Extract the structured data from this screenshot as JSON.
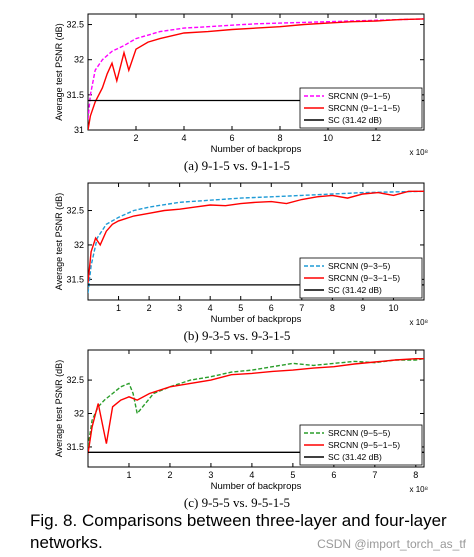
{
  "colors": {
    "three_layer_a": "#ff00ff",
    "three_layer_bc": "#1f9bd6",
    "three_layer_c": "#2a9d2a",
    "four_layer": "#ff0000",
    "sc": "#000000"
  },
  "chart_data": [
    {
      "type": "line",
      "id": "a",
      "caption": "(a) 9-1-5 vs. 9-1-1-5",
      "xlabel": "Number of backprops",
      "ylabel": "Average test PSNR (dB)",
      "x_multiplier": "x 10⁸",
      "xlim": [
        0,
        14
      ],
      "ylim": [
        31.0,
        32.65
      ],
      "xticks": [
        2,
        4,
        6,
        8,
        10,
        12
      ],
      "yticks": [
        31,
        31.5,
        32,
        32.5
      ],
      "legend_position": "bottom-right",
      "series": [
        {
          "name": "SRCNN (9−1−5)",
          "style": "dashed",
          "color_key": "three_layer_a",
          "x": [
            0,
            0.1,
            0.3,
            0.6,
            1,
            1.5,
            2,
            3,
            4,
            5,
            6,
            7,
            8,
            9,
            10,
            11,
            12,
            13,
            14
          ],
          "y": [
            31.15,
            31.5,
            31.85,
            32.0,
            32.12,
            32.2,
            32.3,
            32.4,
            32.45,
            32.47,
            32.49,
            32.51,
            32.52,
            32.53,
            32.54,
            32.55,
            32.56,
            32.57,
            32.58
          ]
        },
        {
          "name": "SRCNN (9−1−1−5)",
          "style": "solid",
          "color_key": "four_layer",
          "x": [
            0,
            0.1,
            0.3,
            0.6,
            0.8,
            1.0,
            1.2,
            1.5,
            1.7,
            2,
            2.5,
            3,
            4,
            5,
            6,
            7,
            8,
            9,
            10,
            11,
            12,
            13,
            14
          ],
          "y": [
            31.0,
            31.2,
            31.4,
            31.6,
            31.8,
            31.95,
            31.7,
            32.1,
            31.85,
            32.15,
            32.25,
            32.3,
            32.38,
            32.4,
            32.43,
            32.45,
            32.47,
            32.5,
            32.52,
            32.54,
            32.55,
            32.57,
            32.58
          ]
        },
        {
          "name": "SC (31.42 dB)",
          "style": "solid",
          "color_key": "sc",
          "x": [
            0,
            14
          ],
          "y": [
            31.42,
            31.42
          ]
        }
      ]
    },
    {
      "type": "line",
      "id": "b",
      "caption": "(b) 9-3-5 vs. 9-3-1-5",
      "xlabel": "Number of backprops",
      "ylabel": "Average test PSNR (dB)",
      "x_multiplier": "x 10⁸",
      "xlim": [
        0,
        11
      ],
      "ylim": [
        31.2,
        32.9
      ],
      "xticks": [
        1,
        2,
        3,
        4,
        5,
        6,
        7,
        8,
        9,
        10
      ],
      "yticks": [
        31.5,
        32,
        32.5
      ],
      "legend_position": "bottom-right",
      "series": [
        {
          "name": "SRCNN (9−3−5)",
          "style": "dashed",
          "color_key": "three_layer_bc",
          "x": [
            0,
            0.1,
            0.3,
            0.6,
            1,
            1.5,
            2,
            3,
            4,
            5,
            6,
            7,
            8,
            9,
            10,
            11
          ],
          "y": [
            31.3,
            31.7,
            32.1,
            32.3,
            32.4,
            32.5,
            32.55,
            32.62,
            32.65,
            32.68,
            32.7,
            32.72,
            32.74,
            32.76,
            32.77,
            32.78
          ]
        },
        {
          "name": "SRCNN (9−3−1−5)",
          "style": "solid",
          "color_key": "four_layer",
          "x": [
            0,
            0.1,
            0.25,
            0.4,
            0.6,
            0.8,
            1,
            1.5,
            2,
            2.5,
            3,
            3.5,
            4,
            4.5,
            5,
            5.5,
            6,
            6.5,
            7,
            7.5,
            8,
            8.5,
            9,
            9.5,
            10,
            10.5,
            11
          ],
          "y": [
            31.45,
            31.9,
            32.1,
            32.0,
            32.2,
            32.3,
            32.35,
            32.42,
            32.46,
            32.5,
            32.52,
            32.55,
            32.58,
            32.57,
            32.6,
            32.62,
            32.63,
            32.6,
            32.66,
            32.7,
            32.72,
            32.68,
            32.74,
            32.76,
            32.72,
            32.78,
            32.78
          ]
        },
        {
          "name": "SC (31.42 dB)",
          "style": "solid",
          "color_key": "sc",
          "x": [
            0,
            11
          ],
          "y": [
            31.42,
            31.42
          ]
        }
      ]
    },
    {
      "type": "line",
      "id": "c",
      "caption": "(c) 9-5-5 vs. 9-5-1-5",
      "xlabel": "Number of backprops",
      "ylabel": "Average test PSNR (dB)",
      "x_multiplier": "x 10⁸",
      "xlim": [
        0,
        8.2
      ],
      "ylim": [
        31.2,
        32.95
      ],
      "xticks": [
        1,
        2,
        3,
        4,
        5,
        6,
        7,
        8
      ],
      "yticks": [
        31.5,
        32,
        32.5
      ],
      "legend_position": "bottom-right",
      "series": [
        {
          "name": "SRCNN (9−5−5)",
          "style": "dashed",
          "color_key": "three_layer_c",
          "x": [
            0,
            0.1,
            0.25,
            0.4,
            0.6,
            0.8,
            1.0,
            1.1,
            1.2,
            1.4,
            1.6,
            2,
            2.5,
            3,
            3.5,
            4,
            4.5,
            5,
            5.5,
            6,
            6.5,
            7,
            7.5,
            8,
            8.2
          ],
          "y": [
            31.5,
            31.9,
            32.1,
            32.2,
            32.3,
            32.4,
            32.45,
            32.3,
            32.0,
            32.15,
            32.3,
            32.4,
            32.5,
            32.55,
            32.62,
            32.65,
            32.7,
            32.75,
            32.72,
            32.75,
            32.78,
            32.76,
            32.8,
            32.8,
            32.82
          ]
        },
        {
          "name": "SRCNN (9−5−1−5)",
          "style": "solid",
          "color_key": "four_layer",
          "x": [
            0,
            0.1,
            0.25,
            0.45,
            0.6,
            0.8,
            1.0,
            1.2,
            1.5,
            2,
            2.5,
            3,
            3.5,
            4,
            4.5,
            5,
            5.5,
            6,
            6.5,
            7,
            7.5,
            8,
            8.2
          ],
          "y": [
            31.4,
            31.8,
            32.15,
            31.55,
            32.1,
            32.2,
            32.25,
            32.2,
            32.3,
            32.4,
            32.45,
            32.5,
            32.58,
            32.6,
            32.63,
            32.65,
            32.68,
            32.7,
            32.74,
            32.77,
            32.8,
            32.82,
            32.82
          ]
        },
        {
          "name": "SC (31.42 dB)",
          "style": "solid",
          "color_key": "sc",
          "x": [
            0,
            8.2
          ],
          "y": [
            31.42,
            31.42
          ]
        }
      ]
    }
  ],
  "figure_caption": "Fig. 8.  Comparisons between three-layer and four-layer networks.",
  "watermark": "CSDN @import_torch_as_tf"
}
